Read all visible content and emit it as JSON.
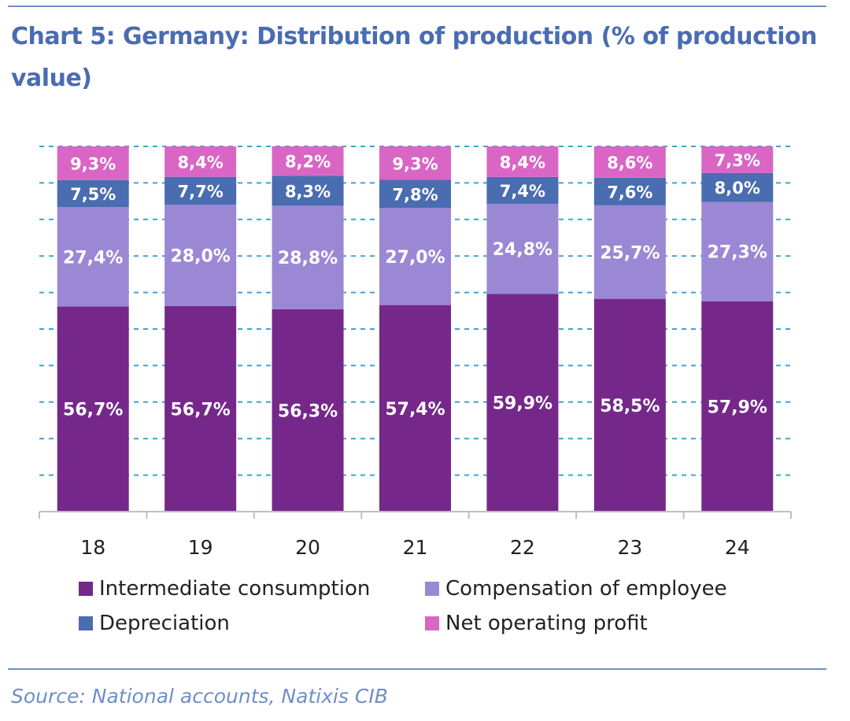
{
  "header": {
    "title": "Chart 5: Germany: Distribution of production (% of production value)"
  },
  "footer": {
    "source": "Source: National accounts, Natixis CIB"
  },
  "colors": {
    "intermediate": "#75288a",
    "compensation": "#9b88d4",
    "depreciation": "#4a6cb0",
    "profit": "#d966c4",
    "rule": "#6f8fc8",
    "gridline": "#3ba3d8",
    "title": "#4a6cb0"
  },
  "chart_data": {
    "type": "bar",
    "stacked": true,
    "categories": [
      "18",
      "19",
      "20",
      "21",
      "22",
      "23",
      "24"
    ],
    "ylim": [
      0,
      100
    ],
    "grid": true,
    "legend_position": "bottom",
    "series": [
      {
        "name": "Intermediate consumption",
        "color": "#75288a",
        "values": [
          56.7,
          56.7,
          56.3,
          57.4,
          59.9,
          58.5,
          57.9
        ],
        "labels": [
          "56,7%",
          "56,7%",
          "56,3%",
          "57,4%",
          "59,9%",
          "58,5%",
          "57,9%"
        ]
      },
      {
        "name": "Compensation of employee",
        "color": "#9b88d4",
        "values": [
          27.4,
          28.0,
          28.8,
          27.0,
          24.8,
          25.7,
          27.3
        ],
        "labels": [
          "27,4%",
          "28,0%",
          "28,8%",
          "27,0%",
          "24,8%",
          "25,7%",
          "27,3%"
        ]
      },
      {
        "name": "Depreciation",
        "color": "#4a6cb0",
        "values": [
          7.5,
          7.7,
          8.3,
          7.8,
          7.4,
          7.6,
          8.0
        ],
        "labels": [
          "7,5%",
          "7,7%",
          "8,3%",
          "7,8%",
          "7,4%",
          "7,6%",
          "8,0%"
        ]
      },
      {
        "name": "Net operating profit",
        "color": "#d966c4",
        "values": [
          9.3,
          8.4,
          8.2,
          9.3,
          8.4,
          8.6,
          7.3
        ],
        "labels": [
          "9,3%",
          "8,4%",
          "8,2%",
          "9,3%",
          "8,4%",
          "8,6%",
          "7,3%"
        ]
      }
    ]
  }
}
